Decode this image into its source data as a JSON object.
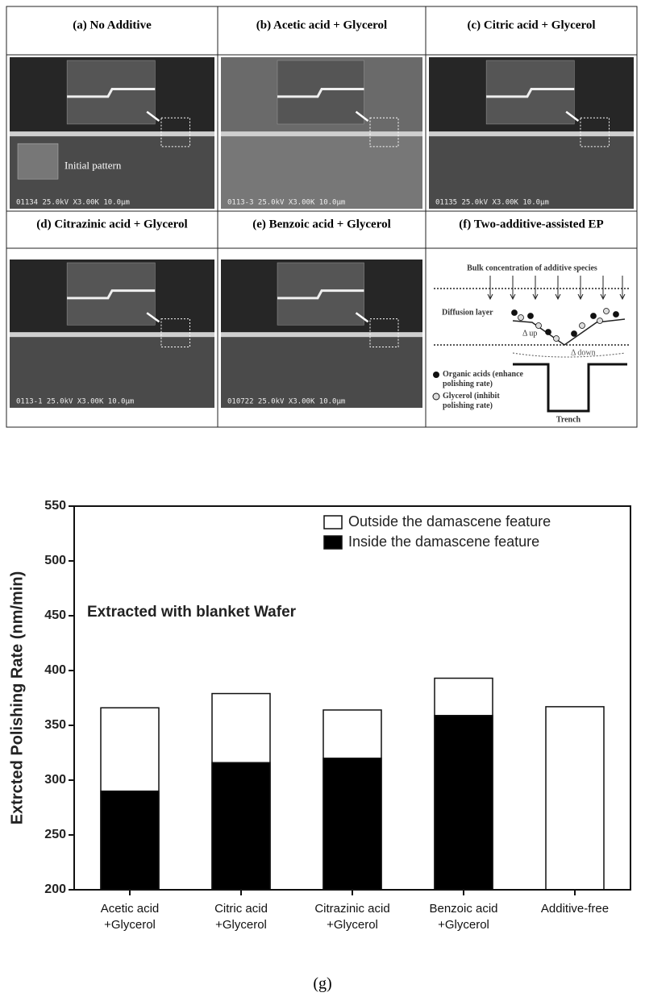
{
  "panels": [
    {
      "label": "(a) No Additive",
      "scale": "01134  25.0kV  X3.00K  10.0µm",
      "note": "Initial pattern"
    },
    {
      "label": "(b) Acetic acid + Glycerol",
      "scale": "0113-3  25.0kV  X3.00K  10.0µm"
    },
    {
      "label": "(c) Citric acid + Glycerol",
      "scale": "01135  25.0kV  X3.00K  10.0µm"
    },
    {
      "label": "(d) Citrazinic acid + Glycerol",
      "scale": "0113-1  25.0kV  X3.00K  10.0µm"
    },
    {
      "label": "(e) Benzoic acid + Glycerol",
      "scale": "010722  25.0kV  X3.00K  10.0µm"
    },
    {
      "label": "(f) Two-additive-assisted EP"
    }
  ],
  "diagram": {
    "bulk": "Bulk concentration of additive species",
    "layer": "Diffusion layer",
    "up": "Δ up",
    "down": "Δ down",
    "organic": "Organic acids (enhance\npolishing rate)",
    "glycerol": "Glycerol (inhibit\npolishing rate)",
    "trench": "Trench"
  },
  "chart_data": {
    "type": "bar",
    "y_label": "Extrcted Polishing Rate (nm/min)",
    "annotation": "Extracted with blanket Wafer",
    "categories": [
      "Acetic acid\n+Glycerol",
      "Citric acid\n+Glycerol",
      "Citrazinic acid\n+Glycerol",
      "Benzoic acid\n+Glycerol",
      "Additive-free"
    ],
    "series": [
      {
        "name": "Outside the damascene feature",
        "color": "#ffffff",
        "values": [
          366,
          379,
          364,
          393,
          367
        ]
      },
      {
        "name": "Inside the damascene feature",
        "color": "#000000",
        "values": [
          290,
          316,
          320,
          359,
          null
        ]
      }
    ],
    "ylim": [
      200,
      550
    ],
    "yticks": [
      200,
      250,
      300,
      350,
      400,
      450,
      500,
      550
    ],
    "legend": "upper right",
    "grid": false
  },
  "caption": "(g)"
}
